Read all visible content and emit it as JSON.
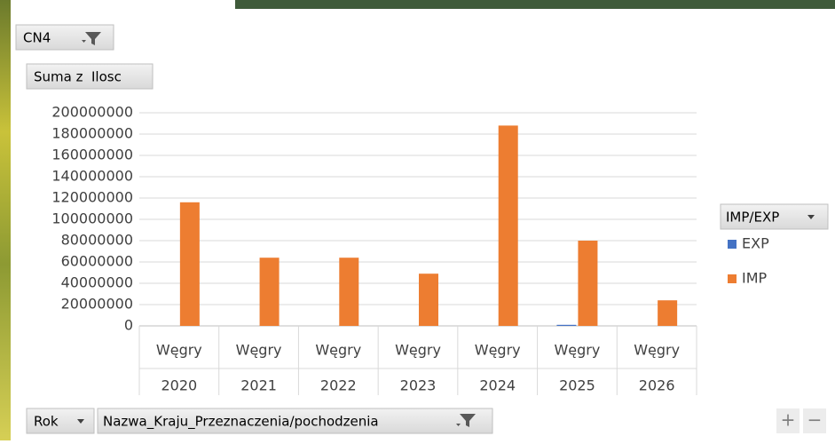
{
  "chart_data": {
    "type": "bar",
    "categories": [
      "2020",
      "2021",
      "2022",
      "2023",
      "2024",
      "2025",
      "2026"
    ],
    "subcategories": [
      "Węgry",
      "Węgry",
      "Węgry",
      "Węgry",
      "Węgry",
      "Węgry",
      "Węgry"
    ],
    "series": [
      {
        "name": "EXP",
        "color": "#4472c4",
        "values": [
          null,
          null,
          null,
          null,
          null,
          1000000,
          null
        ]
      },
      {
        "name": "IMP",
        "color": "#ed7d31",
        "values": [
          116000000,
          64000000,
          64000000,
          49000000,
          188000000,
          80000000,
          24000000
        ]
      }
    ],
    "ylim": [
      0,
      200000000
    ],
    "yticks": [
      0,
      20000000,
      40000000,
      60000000,
      80000000,
      100000000,
      120000000,
      140000000,
      160000000,
      180000000,
      200000000
    ],
    "grid": true,
    "legend": "right"
  },
  "ui": {
    "report_filter": "CN4",
    "values_field": "Suma z  Ilosc",
    "legend_field": "IMP/EXP",
    "axis_fields": [
      "Rok",
      "Nazwa_Kraju_Przeznaczenia/pochodzenia"
    ],
    "zoom": [
      "+",
      "−"
    ]
  }
}
